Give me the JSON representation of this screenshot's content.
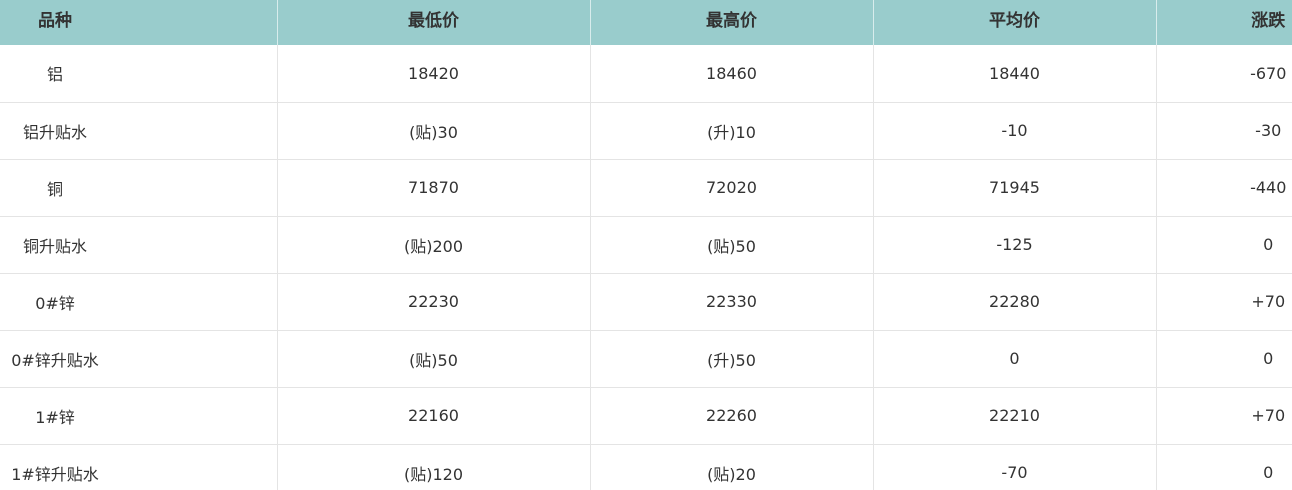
{
  "table": {
    "header": [
      "品种",
      "最低价",
      "最高价",
      "平均价",
      "涨跌"
    ],
    "rows": [
      [
        "铝",
        "18420",
        "18460",
        "18440",
        "-670"
      ],
      [
        "铝升贴水",
        "(贴)30",
        "(升)10",
        "-10",
        "-30"
      ],
      [
        "铜",
        "71870",
        "72020",
        "71945",
        "-440"
      ],
      [
        "铜升贴水",
        "(贴)200",
        "(贴)50",
        "-125",
        "0"
      ],
      [
        "0#锌",
        "22230",
        "22330",
        "22280",
        "+70"
      ],
      [
        "0#锌升贴水",
        "(贴)50",
        "(升)50",
        "0",
        "0"
      ],
      [
        "1#锌",
        "22160",
        "22260",
        "22210",
        "+70"
      ],
      [
        "1#锌升贴水",
        "(贴)120",
        "(贴)20",
        "-70",
        "0"
      ]
    ]
  }
}
